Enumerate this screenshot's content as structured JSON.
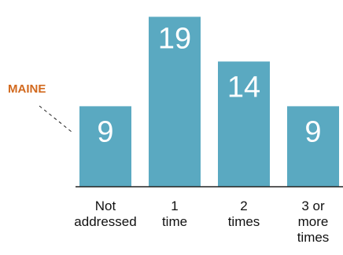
{
  "chart_data": {
    "type": "bar",
    "categories": [
      "Not addressed",
      "1 time",
      "2 times",
      "3 or more times"
    ],
    "category_lines": [
      [
        "Not",
        "addressed"
      ],
      [
        "1",
        "time"
      ],
      [
        "2",
        "times"
      ],
      [
        "3 or",
        "more",
        "times"
      ]
    ],
    "values": [
      9,
      19,
      14,
      9
    ],
    "ylim": [
      0,
      20
    ],
    "grid": false,
    "bar_color": "#5aa9c1",
    "axis_color": "#222222",
    "annotation": {
      "text": "MAINE",
      "color": "#d2691e",
      "target_index": 0
    }
  }
}
